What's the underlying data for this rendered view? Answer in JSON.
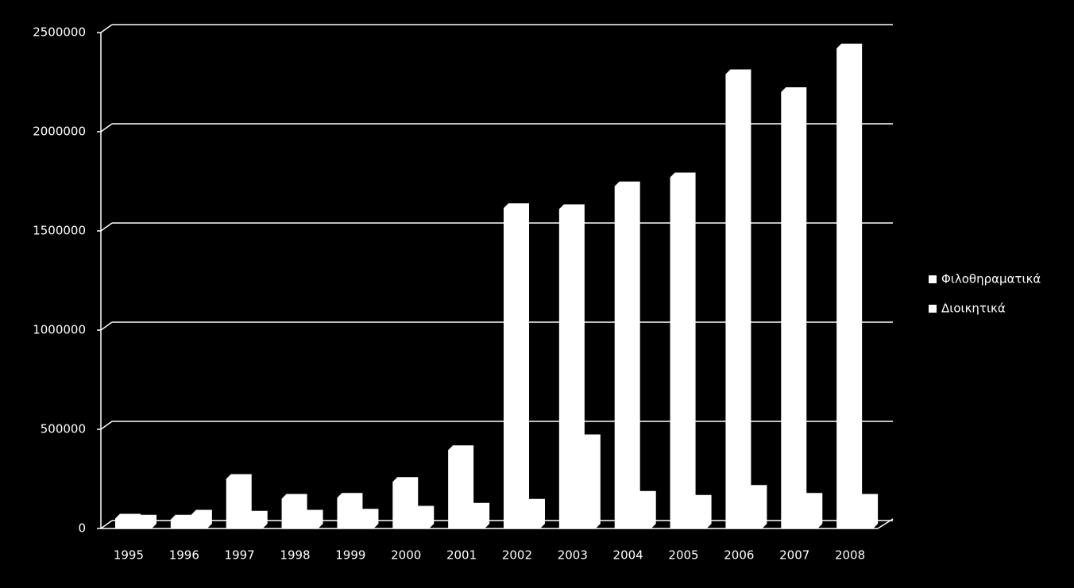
{
  "chart_data": {
    "type": "bar3d",
    "categories": [
      "1995",
      "1996",
      "1997",
      "1998",
      "1999",
      "2000",
      "2001",
      "2002",
      "2003",
      "2004",
      "2005",
      "2006",
      "2007",
      "2008"
    ],
    "series": [
      {
        "name": "Φιλοθηραματικά",
        "color": "#ffffff",
        "values": [
          50000,
          45000,
          250000,
          150000,
          155000,
          235000,
          395000,
          1615000,
          1610000,
          1725000,
          1770000,
          2290000,
          2200000,
          2420000
        ]
      },
      {
        "name": "Διοικητικά",
        "color": "#ffffff",
        "values": [
          45000,
          70000,
          65000,
          70000,
          75000,
          90000,
          105000,
          125000,
          450000,
          165000,
          145000,
          195000,
          155000,
          150000
        ]
      }
    ],
    "ylim": [
      0,
      2500000
    ],
    "yticks": [
      0,
      500000,
      1000000,
      1500000,
      2000000,
      2500000
    ],
    "grid": true,
    "legend": "right"
  }
}
